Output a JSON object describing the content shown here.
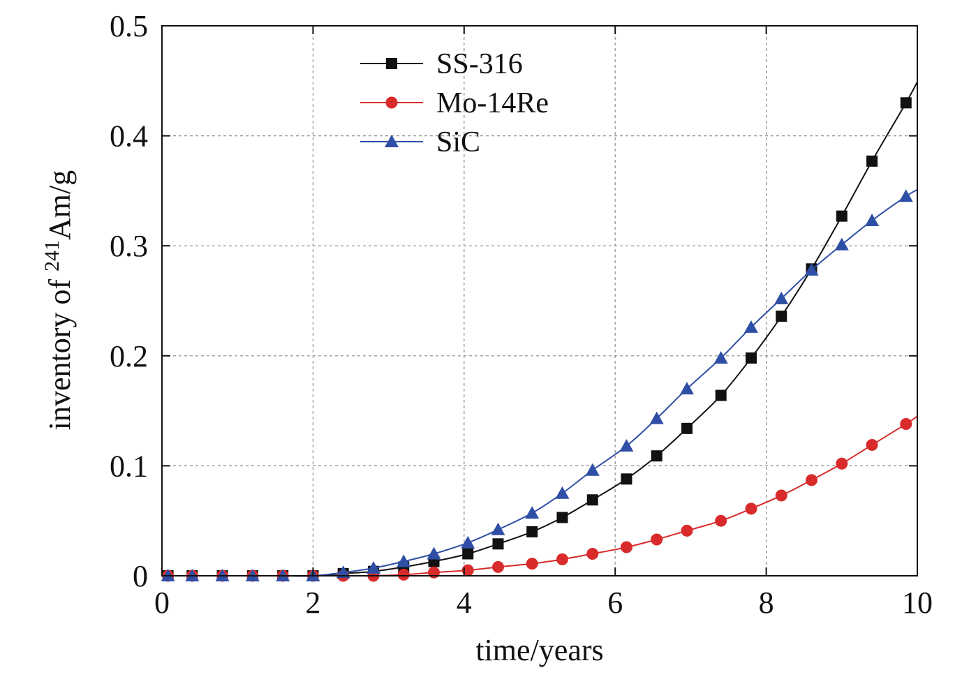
{
  "chart_data": {
    "type": "line",
    "xlabel": "time/years",
    "ylabel_prefix": "inventory of ",
    "ylabel_sup": "241",
    "ylabel_suffix": "Am/g",
    "xlim": [
      0,
      10
    ],
    "ylim": [
      0,
      0.5
    ],
    "xticks": [
      0,
      2,
      4,
      6,
      8,
      10
    ],
    "xtick_labels": [
      "0",
      "2",
      "4",
      "6",
      "8",
      "10"
    ],
    "yticks": [
      0,
      0.1,
      0.2,
      0.3,
      0.4,
      0.5
    ],
    "ytick_labels": [
      "0",
      "0.1",
      "0.2",
      "0.3",
      "0.4",
      "0.5"
    ],
    "grid": true,
    "legend_position": "top-center",
    "series": [
      {
        "name": "SS-316",
        "color": "#111111",
        "marker": "square",
        "x": [
          0.08,
          0.4,
          0.8,
          1.2,
          1.6,
          2.0,
          2.4,
          2.8,
          3.2,
          3.6,
          4.05,
          4.45,
          4.9,
          5.3,
          5.7,
          6.15,
          6.55,
          6.95,
          7.4,
          7.8,
          8.2,
          8.6,
          9.0,
          9.4,
          9.85
        ],
        "y": [
          0.0,
          0.0,
          0.0,
          0.0,
          0.0,
          0.0,
          0.002,
          0.004,
          0.008,
          0.013,
          0.02,
          0.029,
          0.04,
          0.053,
          0.069,
          0.088,
          0.109,
          0.134,
          0.164,
          0.198,
          0.236,
          0.279,
          0.327,
          0.377,
          0.43
        ],
        "curve_end": [
          10.0,
          0.449
        ]
      },
      {
        "name": "Mo-14Re",
        "color": "#d92b2b",
        "marker": "circle",
        "x": [
          0.08,
          0.4,
          0.8,
          1.2,
          1.6,
          2.0,
          2.4,
          2.8,
          3.2,
          3.6,
          4.05,
          4.45,
          4.9,
          5.3,
          5.7,
          6.15,
          6.55,
          6.95,
          7.4,
          7.8,
          8.2,
          8.6,
          9.0,
          9.4,
          9.85
        ],
        "y": [
          0.0,
          0.0,
          0.0,
          0.0,
          0.0,
          0.0,
          0.0,
          0.0,
          0.001,
          0.003,
          0.005,
          0.008,
          0.011,
          0.015,
          0.02,
          0.026,
          0.033,
          0.041,
          0.05,
          0.061,
          0.073,
          0.087,
          0.102,
          0.119,
          0.138
        ],
        "curve_end": [
          10.0,
          0.145
        ]
      },
      {
        "name": "SiC",
        "color": "#2f4fa6",
        "marker": "triangle",
        "x": [
          0.08,
          0.4,
          0.8,
          1.2,
          1.6,
          2.0,
          2.4,
          2.8,
          3.2,
          3.6,
          4.05,
          4.45,
          4.9,
          5.3,
          5.7,
          6.15,
          6.55,
          6.95,
          7.4,
          7.8,
          8.2,
          8.6,
          9.0,
          9.4,
          9.85
        ],
        "y": [
          0.0,
          0.0,
          0.0,
          0.0,
          0.0,
          0.0,
          0.003,
          0.007,
          0.013,
          0.02,
          0.03,
          0.042,
          0.057,
          0.075,
          0.096,
          0.118,
          0.143,
          0.17,
          0.198,
          0.226,
          0.252,
          0.278,
          0.301,
          0.323,
          0.345
        ],
        "curve_end": [
          10.0,
          0.351
        ]
      }
    ]
  }
}
